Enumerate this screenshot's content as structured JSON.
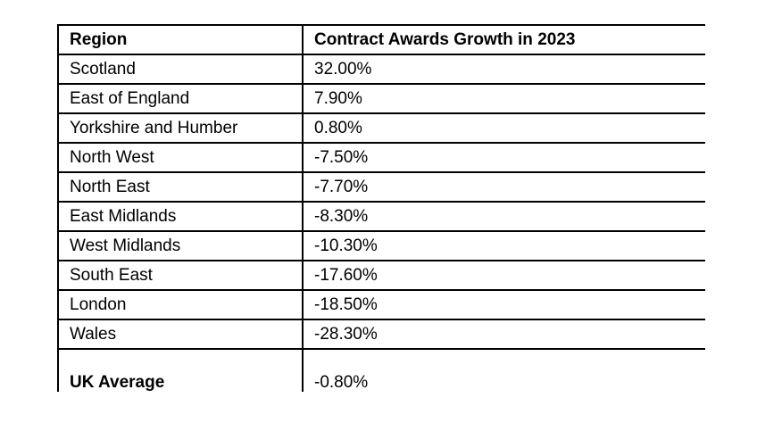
{
  "table": {
    "headers": [
      "Region",
      "Contract Awards Growth in 2023"
    ],
    "rows": [
      [
        "Scotland",
        "32.00%"
      ],
      [
        "East of England",
        "7.90%"
      ],
      [
        "Yorkshire and Humber",
        "0.80%"
      ],
      [
        "North West",
        "-7.50%"
      ],
      [
        "North East",
        "-7.70%"
      ],
      [
        "East Midlands",
        "-8.30%"
      ],
      [
        "West Midlands",
        "-10.30%"
      ],
      [
        "South East",
        "-17.60%"
      ],
      [
        "London",
        "-18.50%"
      ],
      [
        "Wales",
        "-28.30%"
      ]
    ],
    "average_row": [
      "UK Average",
      "-0.80%"
    ]
  }
}
